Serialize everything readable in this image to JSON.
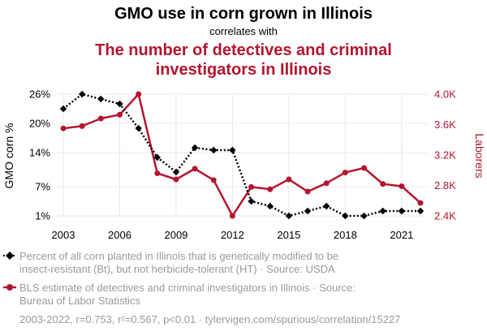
{
  "header": {
    "title": "GMO use in corn grown in Illinois",
    "connector": "correlates with",
    "subtitle_line1": "The number of detectives and criminal",
    "subtitle_line2": "investigators in Illinois"
  },
  "colors": {
    "series1": "#000000",
    "series2": "#b3152f",
    "subtitle": "#b3152f",
    "grid": "#e8e8e8",
    "legend_text": "#9a9a9a"
  },
  "legend": {
    "item1_line1": "Percent of all corn planted in Illinois that is genetically modified to be",
    "item1_line2": "insect-resistant (Bt), but not herbicide-tolerant (HT) · Source: USDA",
    "item2_line1": "BLS estimate of detectives and criminal investigators in Illinois · Source:",
    "item2_line2": "Bureau of Labor Statistics"
  },
  "footer": {
    "text": "2003-2022, r=0.753, r²=0.567, p<0.01 · tylervigen.com/spurious/correlation/15227"
  },
  "chart_data": {
    "type": "line",
    "x": [
      2003,
      2004,
      2005,
      2006,
      2007,
      2008,
      2009,
      2010,
      2011,
      2012,
      2013,
      2014,
      2015,
      2016,
      2017,
      2018,
      2019,
      2020,
      2021,
      2022
    ],
    "x_ticks": [
      2003,
      2006,
      2009,
      2012,
      2015,
      2018,
      2021
    ],
    "grid": true,
    "series": [
      {
        "axis": "left",
        "style": "dotted",
        "marker": "diamond",
        "values": [
          23,
          26,
          25,
          24,
          19,
          13,
          10,
          15,
          14.5,
          14.5,
          4,
          3,
          1,
          2,
          3,
          1,
          1,
          2,
          2,
          2
        ]
      },
      {
        "axis": "right",
        "style": "solid",
        "marker": "circle",
        "values": [
          3550,
          3580,
          3680,
          3730,
          4000,
          2960,
          2880,
          3020,
          2870,
          2400,
          2780,
          2750,
          2880,
          2720,
          2830,
          2970,
          3030,
          2820,
          2790,
          2570
        ]
      }
    ],
    "y_left": {
      "label": "GMO corn %",
      "ticks": [
        1,
        7,
        14,
        20,
        26
      ],
      "tick_labels": [
        "1%",
        "7%",
        "14%",
        "20%",
        "26%"
      ],
      "ylim": [
        1,
        26
      ]
    },
    "y_right": {
      "label": "Laborers",
      "ticks": [
        2400,
        2800,
        3200,
        3600,
        4000
      ],
      "tick_labels": [
        "2.4K",
        "2.8K",
        "3.2K",
        "3.6K",
        "4.0K"
      ],
      "ylim": [
        2400,
        4000
      ]
    }
  }
}
